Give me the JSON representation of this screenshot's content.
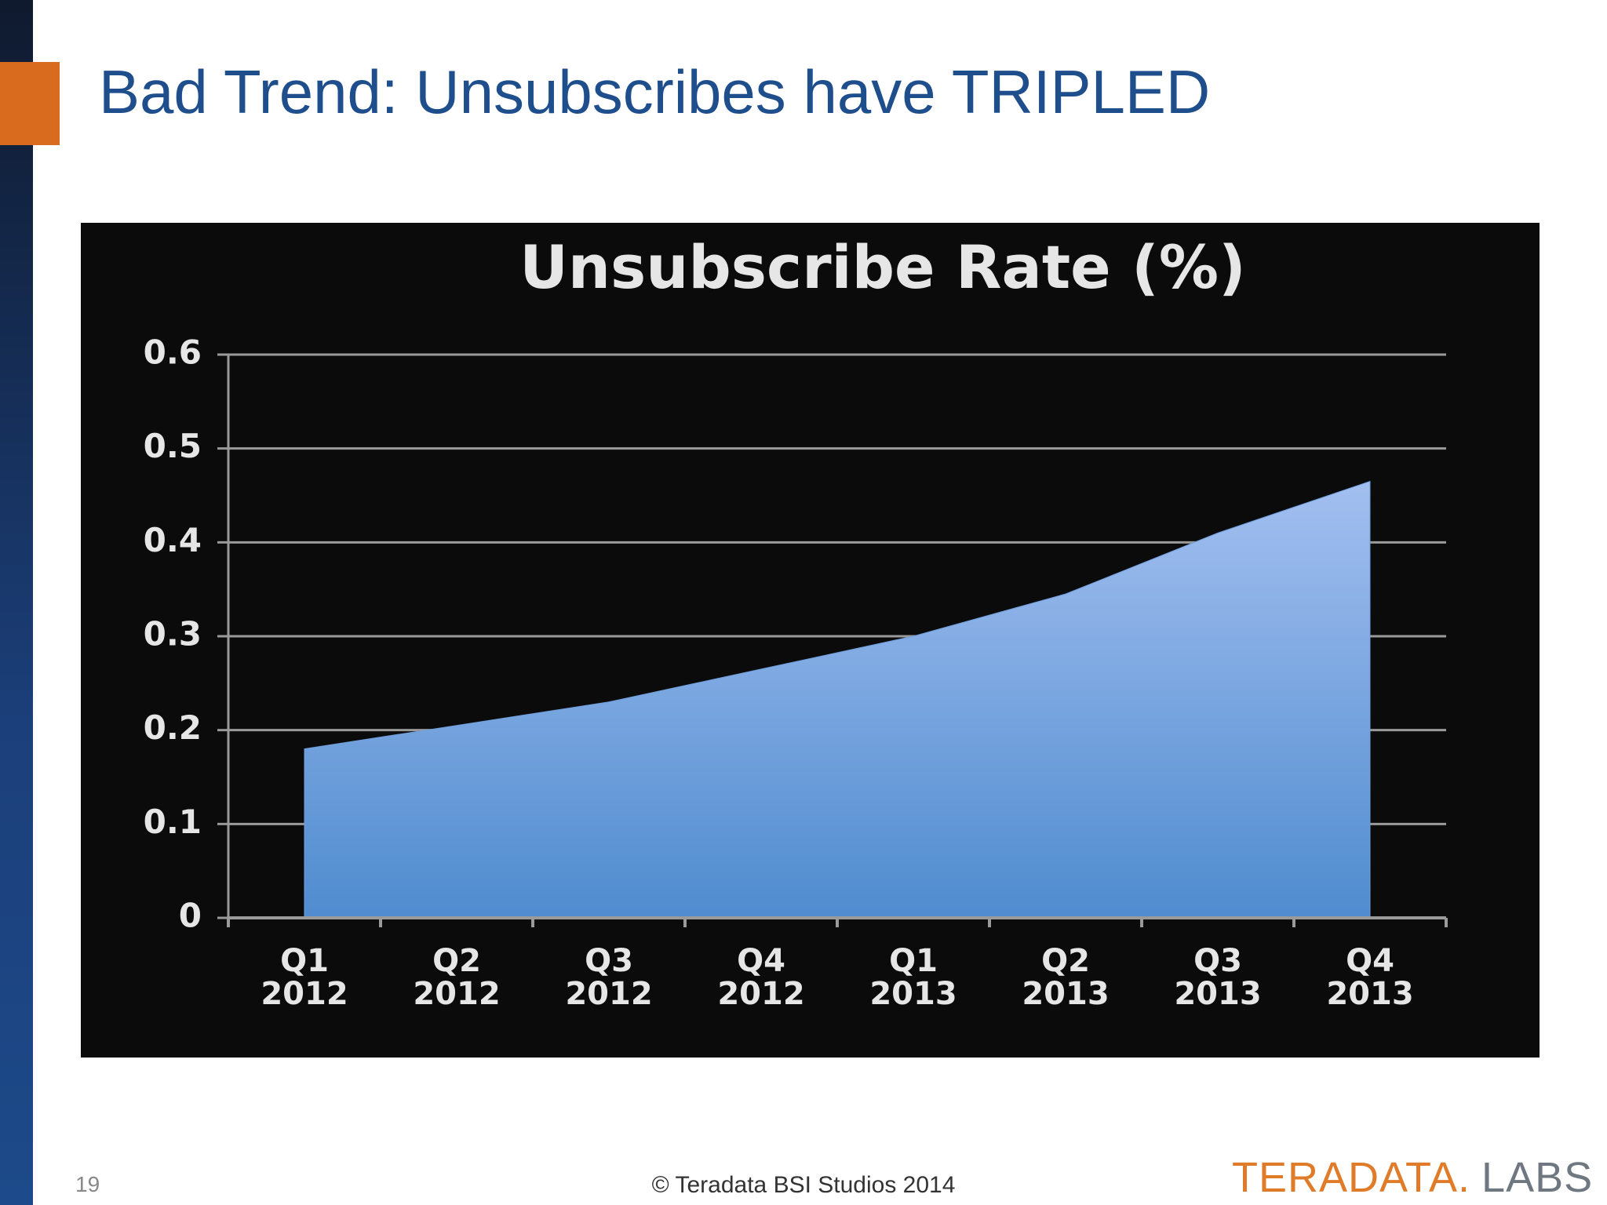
{
  "slide": {
    "title": "Bad Trend: Unsubscribes have TRIPLED",
    "page": "19",
    "footer": "© Teradata BSI Studios 2014",
    "logo": {
      "brand": "TERADATA.",
      "product": "LABS"
    }
  },
  "chart_data": {
    "type": "area",
    "title": "Unsubscribe Rate (%)",
    "categories": [
      "Q1 2012",
      "Q2 2012",
      "Q3 2012",
      "Q4 2012",
      "Q1 2013",
      "Q2 2013",
      "Q3 2013",
      "Q4 2013"
    ],
    "values": [
      0.18,
      0.205,
      0.23,
      0.265,
      0.3,
      0.345,
      0.41,
      0.465
    ],
    "color": "#6f9edb",
    "ylim": [
      0,
      0.6
    ],
    "yticks": [
      0,
      0.1,
      0.2,
      0.3,
      0.4,
      0.5,
      0.6
    ],
    "grid": true
  }
}
